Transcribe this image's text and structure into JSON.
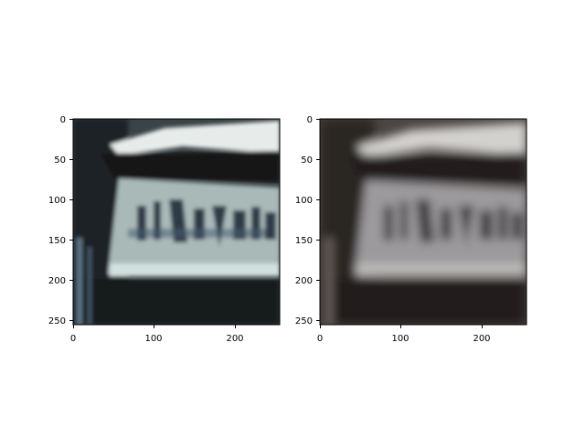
{
  "panels": [
    {
      "id": "left",
      "description_tone": "sharp color",
      "x_ticks": [
        "0",
        "100",
        "200"
      ],
      "y_ticks": [
        "0",
        "50",
        "100",
        "150",
        "200",
        "250"
      ],
      "palette": {
        "bg": "#3a4347",
        "dark": "#151818",
        "frame": "#2b2f2d",
        "plate": "#a9b9b8",
        "plate_dark": "#6d7f84",
        "top_light": "#e7ecea",
        "ink": "#2f3b46",
        "tint": "#4b5f74"
      }
    },
    {
      "id": "right",
      "description_tone": "blurry desaturated",
      "x_ticks": [
        "0",
        "100",
        "200"
      ],
      "y_ticks": [
        "0",
        "50",
        "100",
        "150",
        "200",
        "250"
      ],
      "palette": {
        "bg": "#4b4644",
        "dark": "#221e1c",
        "frame": "#3a3533",
        "plate": "#9c9a9c",
        "plate_dark": "#6b6869",
        "top_light": "#d3d1ce",
        "ink": "#3f3c40",
        "tint": "#5a5458"
      }
    }
  ]
}
